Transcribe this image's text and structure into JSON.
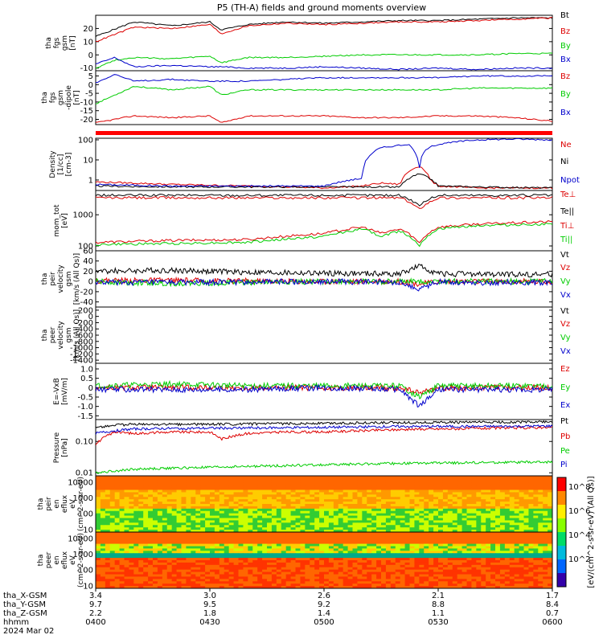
{
  "title": "P5 (TH-A) fields and ground moments overview",
  "chart_data": [
    {
      "type": "line",
      "ylabel": [
        "tha",
        "fgs",
        "gsm",
        "[nT]"
      ],
      "ylim": [
        -12,
        30
      ],
      "yticks": [
        20,
        10,
        0,
        -10
      ],
      "ytick_labels": [
        "20",
        "10",
        "0",
        "-10"
      ],
      "legend": [
        "Bt",
        "Bz",
        "By",
        "Bx"
      ],
      "colors": [
        "#000000",
        "#dd0000",
        "#00cc00",
        "#0000cc"
      ],
      "series": [
        {
          "name": "Bt",
          "x": [
            0,
            10,
            20,
            30,
            33,
            40,
            50,
            60,
            70,
            80,
            90,
            100,
            110,
            120
          ],
          "values": [
            14,
            25,
            22,
            25,
            19,
            23,
            25,
            24,
            25,
            26,
            26,
            27,
            28,
            28
          ]
        },
        {
          "name": "Bz",
          "x": [
            0,
            10,
            20,
            30,
            33,
            40,
            50,
            60,
            70,
            80,
            90,
            100,
            110,
            120
          ],
          "values": [
            10,
            21,
            20,
            23,
            16,
            22,
            24,
            23,
            24,
            25,
            25,
            26,
            27,
            28
          ]
        },
        {
          "name": "By",
          "x": [
            0,
            5,
            10,
            20,
            30,
            33,
            40,
            50,
            60,
            70,
            80,
            90,
            100,
            110,
            120
          ],
          "values": [
            -10,
            -4,
            -2,
            -3,
            -1,
            -6,
            -2,
            -2,
            -1,
            0,
            0,
            0,
            0,
            1,
            1
          ]
        },
        {
          "name": "Bx",
          "x": [
            0,
            5,
            10,
            20,
            30,
            33,
            40,
            50,
            60,
            70,
            80,
            90,
            100,
            110,
            120
          ],
          "values": [
            -7,
            -2,
            -9,
            -8,
            -9,
            -9,
            -10,
            -10,
            -9,
            -10,
            -11,
            -10,
            -11,
            -10,
            -10
          ]
        }
      ]
    },
    {
      "type": "line",
      "ylabel": [
        "tha",
        "fgs",
        "gsm",
        "-dipole",
        "[nT]"
      ],
      "ylim": [
        -23,
        8
      ],
      "yticks": [
        5,
        0,
        -5,
        -10,
        -15,
        -20
      ],
      "ytick_labels": [
        "5",
        "0",
        "-5",
        "-10",
        "-15",
        "-20"
      ],
      "legend": [
        "Bz",
        "By",
        "Bx"
      ],
      "colors": [
        "#dd0000",
        "#00cc00",
        "#0000cc"
      ],
      "series": [
        {
          "name": "Bz",
          "x": [
            0,
            10,
            20,
            30,
            33,
            40,
            50,
            60,
            70,
            80,
            90,
            100,
            110,
            120
          ],
          "values": [
            -22,
            -18,
            -19,
            -18,
            -22,
            -18,
            -18,
            -18,
            -19,
            -19,
            -18,
            -18,
            -19,
            -21
          ]
        },
        {
          "name": "By",
          "x": [
            0,
            5,
            10,
            20,
            30,
            33,
            40,
            50,
            60,
            70,
            80,
            90,
            100,
            110,
            120
          ],
          "values": [
            -11,
            -6,
            -1,
            -3,
            -1,
            -6,
            -3,
            -3,
            -3,
            -3,
            -3,
            -3,
            -2,
            -2,
            -2
          ]
        },
        {
          "name": "Bx",
          "x": [
            0,
            5,
            10,
            20,
            30,
            33,
            40,
            50,
            60,
            70,
            80,
            90,
            100,
            110,
            120
          ],
          "values": [
            1,
            6,
            2,
            3,
            2,
            2,
            2,
            3,
            4,
            4,
            4,
            4,
            5,
            5,
            5
          ]
        }
      ]
    },
    {
      "type": "line",
      "ylabel": [
        "Density",
        "[1/cc]",
        "[cm-3]"
      ],
      "yscale": "log",
      "ylim": [
        0.3,
        120
      ],
      "yticks": [
        100,
        10,
        1
      ],
      "ytick_labels": [
        "100",
        "10",
        "1"
      ],
      "legend": [
        "Ne",
        "Ni",
        "Npot"
      ],
      "colors": [
        "#dd0000",
        "#000000",
        "#0000cc"
      ],
      "series": [
        {
          "name": "Ne",
          "x": [
            0,
            20,
            40,
            60,
            70,
            75,
            80,
            85,
            88,
            90,
            100,
            120
          ],
          "values": [
            0.8,
            0.6,
            0.5,
            0.4,
            0.5,
            0.7,
            0.6,
            5,
            0.9,
            0.5,
            0.4,
            0.4
          ]
        },
        {
          "name": "Ni",
          "x": [
            0,
            20,
            40,
            60,
            80,
            85,
            90,
            100,
            120
          ],
          "values": [
            0.5,
            0.45,
            0.45,
            0.45,
            0.45,
            2,
            0.5,
            0.45,
            0.4
          ]
        },
        {
          "name": "Npot",
          "x": [
            0,
            20,
            40,
            60,
            70,
            75,
            82,
            85,
            88,
            95,
            100,
            110,
            120
          ],
          "values": [
            0.6,
            0.5,
            0.5,
            0.5,
            1.2,
            40,
            60,
            3,
            50,
            80,
            100,
            110,
            100
          ]
        }
      ]
    },
    {
      "type": "line",
      "ylabel": [
        "mom_tot",
        "[eV]"
      ],
      "yscale": "log",
      "ylim": [
        70,
        6000
      ],
      "yticks": [
        1000,
        100
      ],
      "ytick_labels": [
        "1000",
        "100"
      ],
      "legend": [
        "Te⊥",
        "Te||",
        "Ti⊥",
        "Ti||"
      ],
      "colors": [
        "#dd0000",
        "#000000",
        "#dd0000",
        "#00cc00"
      ],
      "series": [
        {
          "name": "Te⊥",
          "x": [
            0,
            20,
            40,
            60,
            70,
            80,
            85,
            90,
            100,
            120
          ],
          "values": [
            3500,
            3500,
            3500,
            3500,
            3500,
            3500,
            1500,
            3500,
            3500,
            3500
          ]
        },
        {
          "name": "Te||",
          "x": [
            0,
            20,
            40,
            60,
            70,
            80,
            85,
            90,
            100,
            120
          ],
          "values": [
            4200,
            4200,
            4200,
            4200,
            4200,
            4200,
            2000,
            4200,
            4200,
            4200
          ]
        },
        {
          "name": "Ti⊥",
          "x": [
            0,
            20,
            40,
            60,
            70,
            75,
            80,
            85,
            90,
            100,
            120
          ],
          "values": [
            130,
            150,
            160,
            250,
            400,
            250,
            350,
            120,
            400,
            500,
            600
          ]
        },
        {
          "name": "Ti||",
          "x": [
            0,
            20,
            40,
            60,
            70,
            75,
            80,
            85,
            90,
            100,
            120
          ],
          "values": [
            110,
            120,
            130,
            200,
            350,
            200,
            300,
            100,
            350,
            450,
            500
          ]
        }
      ]
    },
    {
      "type": "line",
      "ylabel": [
        "tha",
        "peir",
        "velocity",
        "gsm",
        "[km/s (All Qs)]"
      ],
      "ylim": [
        -50,
        60
      ],
      "yticks": [
        60,
        40,
        20,
        0,
        -20,
        -40
      ],
      "ytick_labels": [
        "60",
        "40",
        "20",
        "0",
        "-20",
        "-40"
      ],
      "legend": [
        "Vt",
        "Vz",
        "Vy",
        "Vx"
      ],
      "colors": [
        "#000000",
        "#dd0000",
        "#00cc00",
        "#0000cc"
      ],
      "series": [
        {
          "name": "Vt",
          "x": [
            0,
            20,
            40,
            60,
            80,
            85,
            90,
            100,
            120
          ],
          "values": [
            20,
            22,
            18,
            16,
            15,
            30,
            15,
            14,
            14
          ]
        },
        {
          "name": "Vz",
          "x": [
            0,
            20,
            40,
            60,
            80,
            85,
            90,
            100,
            120
          ],
          "values": [
            2,
            2,
            1,
            0,
            0,
            -5,
            0,
            0,
            0
          ]
        },
        {
          "name": "Vy",
          "x": [
            0,
            20,
            40,
            60,
            80,
            85,
            90,
            100,
            120
          ],
          "values": [
            0,
            -4,
            -2,
            0,
            0,
            0,
            0,
            0,
            0
          ]
        },
        {
          "name": "Vx",
          "x": [
            0,
            20,
            40,
            60,
            80,
            85,
            90,
            100,
            120
          ],
          "values": [
            -2,
            -2,
            -1,
            0,
            -2,
            -15,
            0,
            -2,
            -2
          ]
        }
      ]
    },
    {
      "type": "line",
      "ylabel": [
        "tha",
        "peer",
        "velocity",
        "gsm",
        "[km/s (All Qs)]"
      ],
      "ylim": [
        -1500,
        300
      ],
      "yticks": [
        200,
        0,
        -200,
        -400,
        -600,
        -800,
        -1000,
        -1200,
        -1400
      ],
      "ytick_labels": [
        "200",
        "0",
        "-200",
        "-400",
        "-600",
        "-800",
        "-1000",
        "-1200",
        "-1400"
      ],
      "legend": [
        "Vt",
        "Vz",
        "Vy",
        "Vx"
      ],
      "colors": [
        "#000000",
        "#dd0000",
        "#00cc00",
        "#0000cc"
      ],
      "series": []
    },
    {
      "type": "line",
      "ylabel": [
        "E=-VxB",
        "[mV/m]"
      ],
      "ylim": [
        -1.7,
        1.3
      ],
      "yticks": [
        1.0,
        0.5,
        0,
        -0.5,
        -1.0,
        -1.5
      ],
      "ytick_labels": [
        "1.0",
        "0.5",
        "0",
        "-0.5",
        "-1.0",
        "-1.5"
      ],
      "legend": [
        "Ez",
        "Ey",
        "Ex"
      ],
      "colors": [
        "#dd0000",
        "#00cc00",
        "#0000cc"
      ],
      "series": [
        {
          "name": "Ez",
          "x": [
            0,
            20,
            40,
            60,
            80,
            85,
            90,
            100,
            120
          ],
          "values": [
            0,
            0,
            0,
            0,
            0,
            -0.3,
            0,
            0,
            0
          ]
        },
        {
          "name": "Ey",
          "x": [
            0,
            20,
            40,
            60,
            80,
            85,
            90,
            100,
            120
          ],
          "values": [
            0.1,
            0.2,
            0.1,
            0.1,
            0.1,
            -0.5,
            0.1,
            0.1,
            0.1
          ]
        },
        {
          "name": "Ex",
          "x": [
            0,
            20,
            40,
            60,
            80,
            85,
            90,
            100,
            120
          ],
          "values": [
            -0.1,
            -0.1,
            -0.1,
            0,
            -0.1,
            -1.0,
            -0.1,
            -0.1,
            -0.1
          ]
        }
      ]
    },
    {
      "type": "line",
      "ylabel": [
        "Pressure",
        "[nPa]"
      ],
      "yscale": "log",
      "ylim": [
        0.008,
        0.5
      ],
      "yticks": [
        0.1,
        0.01
      ],
      "ytick_labels": [
        "0.10",
        "0.01"
      ],
      "legend": [
        "Pt",
        "Pb",
        "Pe",
        "Pi"
      ],
      "colors": [
        "#000000",
        "#dd0000",
        "#00cc00",
        "#0000cc"
      ],
      "series": [
        {
          "name": "Pt",
          "x": [
            0,
            5,
            10,
            20,
            40,
            60,
            80,
            100,
            120
          ],
          "values": [
            0.28,
            0.33,
            0.35,
            0.35,
            0.36,
            0.38,
            0.4,
            0.41,
            0.42
          ]
        },
        {
          "name": "Pb",
          "x": [
            0,
            5,
            10,
            20,
            30,
            33,
            40,
            50,
            60,
            80,
            100,
            120
          ],
          "values": [
            0.08,
            0.2,
            0.18,
            0.2,
            0.2,
            0.12,
            0.18,
            0.2,
            0.2,
            0.24,
            0.26,
            0.28
          ]
        },
        {
          "name": "Pe",
          "x": [
            0,
            10,
            20,
            30,
            40,
            60,
            80,
            100,
            120
          ],
          "values": [
            0.01,
            0.013,
            0.014,
            0.015,
            0.016,
            0.018,
            0.02,
            0.021,
            0.022
          ]
        },
        {
          "name": "Pi",
          "x": [
            0,
            5,
            10,
            20,
            40,
            60,
            80,
            100,
            120
          ],
          "values": [
            0.18,
            0.22,
            0.25,
            0.26,
            0.27,
            0.28,
            0.3,
            0.3,
            0.31
          ]
        }
      ]
    },
    {
      "type": "heatmap",
      "ylabel": [
        "tha",
        "peir",
        "en",
        "eflux",
        "eV",
        "(cm^2-s-sr-eV)"
      ],
      "yscale": "log",
      "ylim": [
        7,
        25000
      ],
      "yticks": [
        10000,
        1000,
        100,
        10
      ],
      "ytick_labels": [
        "10000",
        "1000",
        "100",
        "10"
      ]
    },
    {
      "type": "heatmap",
      "ylabel": [
        "tha",
        "peer",
        "en",
        "eflux",
        "eV",
        "(cm^2-s-sr-eV)"
      ],
      "yscale": "log",
      "ylim": [
        7,
        25000
      ],
      "yticks": [
        10000,
        1000,
        100,
        10
      ],
      "ytick_labels": [
        "10000",
        "1000",
        "100",
        "10"
      ]
    }
  ],
  "colorbar": {
    "label": "[eV/(cm^2-s-sr-eV) (All Qs)]",
    "ticks": [
      "10^8",
      "10^6",
      "10^4",
      "10^2"
    ]
  },
  "x_axis": {
    "range": [
      0,
      120
    ],
    "rows": [
      {
        "label": "tha_X-GSM",
        "values": [
          "3.4",
          "3.0",
          "2.6",
          "2.1",
          "1.7"
        ]
      },
      {
        "label": "tha_Y-GSM",
        "values": [
          "9.7",
          "9.5",
          "9.2",
          "8.8",
          "8.4"
        ]
      },
      {
        "label": "tha_Z-GSM",
        "values": [
          "2.2",
          "1.8",
          "1.4",
          "1.1",
          "0.7"
        ]
      },
      {
        "label": "hhmm",
        "values": [
          "0400",
          "0430",
          "0500",
          "0530",
          "0600"
        ]
      }
    ],
    "date": "2024 Mar 02"
  }
}
